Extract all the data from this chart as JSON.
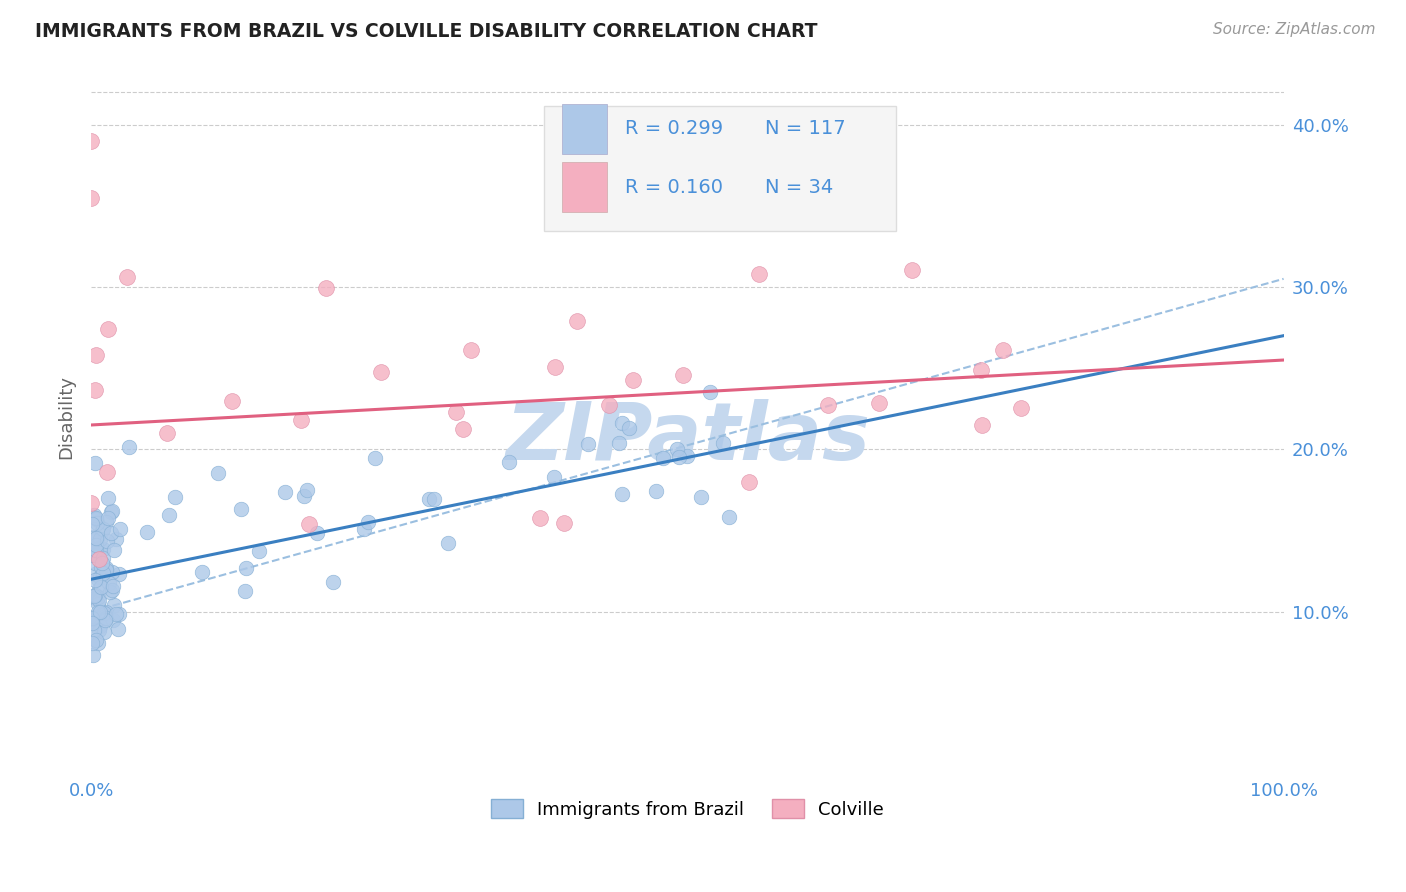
{
  "title": "IMMIGRANTS FROM BRAZIL VS COLVILLE DISABILITY CORRELATION CHART",
  "source": "Source: ZipAtlas.com",
  "ylabel": "Disability",
  "xlim": [
    0.0,
    1.0
  ],
  "ylim": [
    0.0,
    0.44
  ],
  "x_tick_labels": [
    "0.0%",
    "100.0%"
  ],
  "y_tick_labels": [
    "10.0%",
    "20.0%",
    "30.0%",
    "40.0%"
  ],
  "y_tick_values": [
    0.1,
    0.2,
    0.3,
    0.4
  ],
  "blue_R": 0.299,
  "blue_N": 117,
  "pink_R": 0.16,
  "pink_N": 34,
  "blue_color": "#adc8e8",
  "pink_color": "#f4afc0",
  "blue_line_color": "#3a7fc1",
  "pink_line_color": "#e06080",
  "dash_line_color": "#9bbfe0",
  "background_color": "#ffffff",
  "grid_color": "#cccccc",
  "watermark_color": "#c5d8ee",
  "legend_box_color": "#f5f5f5",
  "legend_border_color": "#dddddd",
  "tick_color": "#4a90d9",
  "ylabel_color": "#666666",
  "title_color": "#222222",
  "source_color": "#999999",
  "blue_line_y0": 0.12,
  "blue_line_y1": 0.27,
  "pink_line_y0": 0.215,
  "pink_line_y1": 0.255,
  "dash_line_y0": 0.1,
  "dash_line_y1": 0.305
}
